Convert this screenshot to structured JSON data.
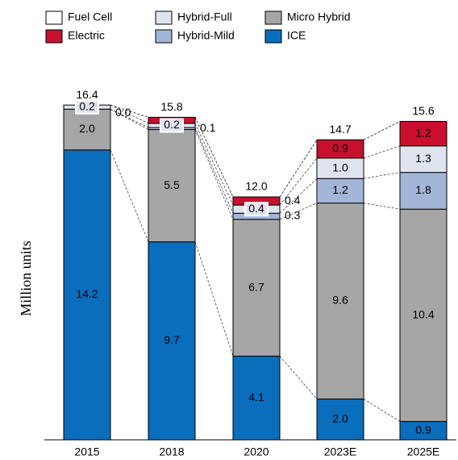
{
  "chart_data": {
    "type": "stacked_bar",
    "ylabel": "Million units",
    "categories": [
      "2015",
      "2018",
      "2020",
      "2023E",
      "2025E"
    ],
    "ylim": [
      0,
      17
    ],
    "series": [
      {
        "name": "ICE",
        "color": "#0a6ebd",
        "values": [
          14.2,
          9.7,
          4.1,
          2.0,
          0.9
        ],
        "value_labels": [
          "14.2",
          "9.7",
          "4.1",
          "2.0",
          "0.9"
        ]
      },
      {
        "name": "Micro Hybrid",
        "color": "#a6a6a6",
        "values": [
          2.0,
          5.5,
          6.7,
          9.6,
          10.4
        ],
        "value_labels": [
          "2.0",
          "5.5",
          "6.7",
          "9.6",
          "10.4"
        ]
      },
      {
        "name": "Hybrid-Mild",
        "color": "#a3b6d8",
        "values": [
          0.0,
          0.1,
          0.3,
          1.2,
          1.8
        ],
        "value_labels": [
          null,
          "0.1",
          "0.3",
          "1.2",
          "1.8"
        ]
      },
      {
        "name": "Hybrid-Full",
        "color": "#dfe4ef",
        "values": [
          0.2,
          0.2,
          0.4,
          1.0,
          1.3
        ],
        "value_labels": [
          "0.2",
          "0.2",
          "0.4",
          "1.0",
          "1.3"
        ]
      },
      {
        "name": "Electric",
        "color": "#c8102e",
        "values": [
          0.0,
          0.3,
          0.4,
          0.9,
          1.2
        ],
        "value_labels": [
          "0.0",
          null,
          "0.4",
          "0.9",
          "1.2"
        ]
      },
      {
        "name": "Fuel Cell",
        "color": "#ffffff",
        "values": [
          0.0,
          0.0,
          0.0,
          0.0,
          0.0
        ],
        "value_labels": [
          null,
          null,
          null,
          null,
          null
        ]
      }
    ],
    "totals": [
      "16.4",
      "15.8",
      "12.0",
      "14.7",
      "15.6"
    ],
    "legend_order": [
      5,
      3,
      1,
      4,
      2,
      0
    ]
  }
}
